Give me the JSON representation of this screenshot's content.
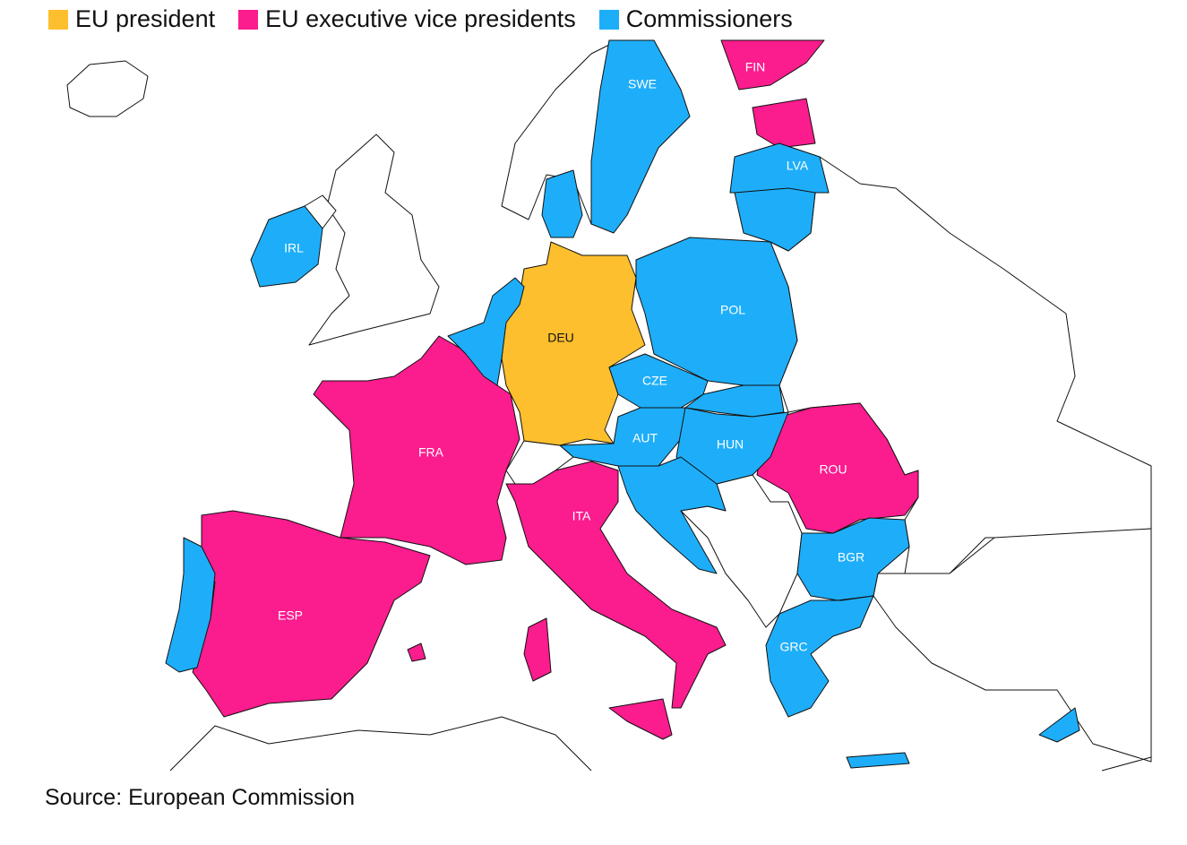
{
  "legend": [
    {
      "label": "EU president",
      "color": "#fdbf2d",
      "countries": [
        "DEU"
      ]
    },
    {
      "label": "EU executive vice presidents",
      "color": "#fb1c8e",
      "countries": [
        "FIN",
        "FRA",
        "ITA",
        "ROU",
        "ESP"
      ]
    },
    {
      "label": "Commissioners",
      "color": "#1eaef9",
      "countries": [
        "SWE",
        "LVA",
        "IRL",
        "POL",
        "CZE",
        "AUT",
        "HUN",
        "BGR",
        "GRC"
      ]
    }
  ],
  "source": "Source: European Commission"
}
